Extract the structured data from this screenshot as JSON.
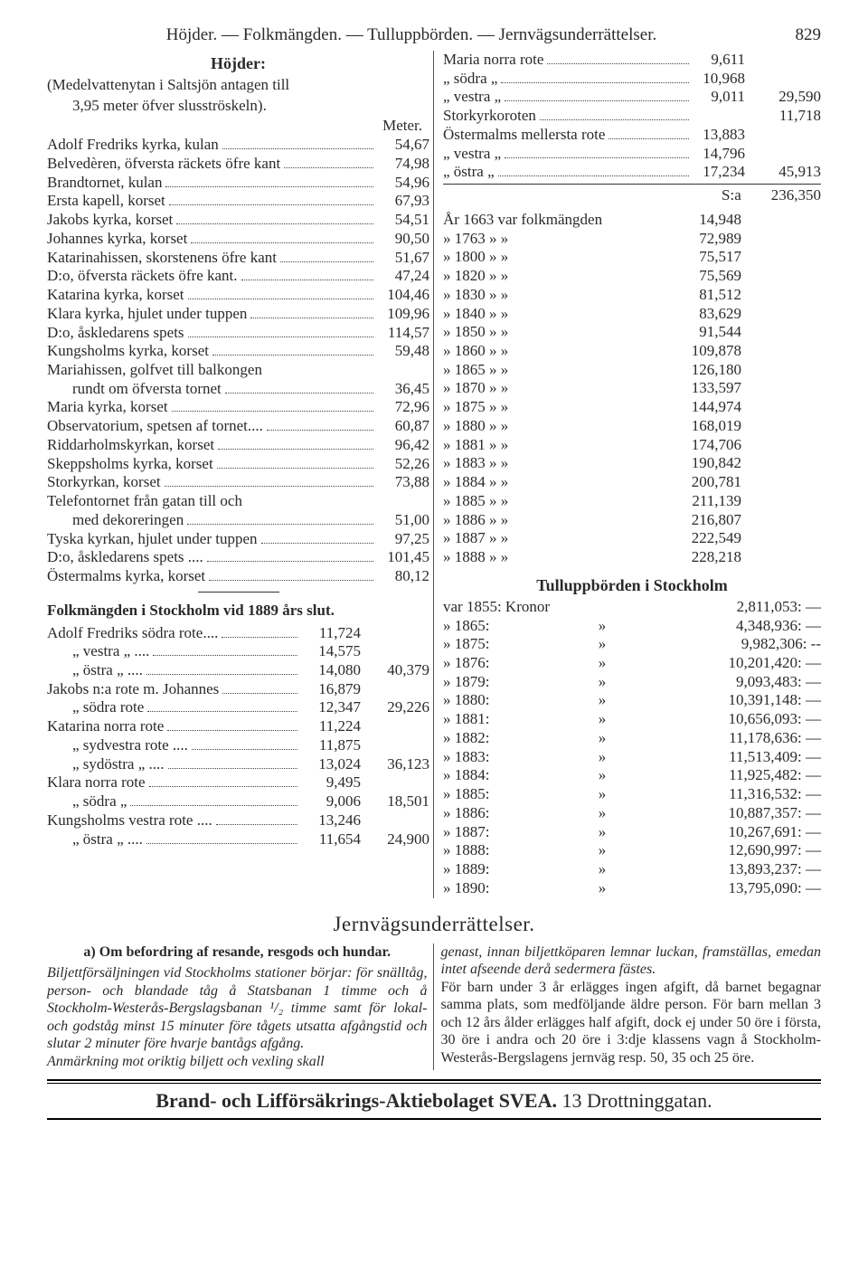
{
  "runhead": {
    "text": "Höjder. — Folkmängden. — Tulluppbörden. — Jernvägsunderrättelser.",
    "page": "829"
  },
  "hojder": {
    "title": "Höjder:",
    "subtitle1": "(Medelvattenytan i Saltsjön antagen till",
    "subtitle2": "3,95 meter öfver slusströskeln).",
    "unit": "Meter.",
    "rows": [
      {
        "l": "Adolf Fredriks kyrka, kulan",
        "v": "54,67"
      },
      {
        "l": "Belvedèren, öfversta räckets öfre kant",
        "v": "74,98"
      },
      {
        "l": "Brandtornet, kulan",
        "v": "54,96"
      },
      {
        "l": "Ersta kapell, korset",
        "v": "67,93"
      },
      {
        "l": "Jakobs kyrka, korset",
        "v": "54,51"
      },
      {
        "l": "Johannes kyrka, korset",
        "v": "90,50"
      },
      {
        "l": "Katarinahissen, skorstenens öfre kant",
        "v": "51,67"
      },
      {
        "l": "D:o,  öfversta räckets öfre kant.",
        "v": "47,24"
      },
      {
        "l": "Katarina kyrka, korset",
        "v": "104,46"
      },
      {
        "l": "Klara kyrka, hjulet under tuppen",
        "v": "109,96"
      },
      {
        "l": "D:o,    åskledarens spets",
        "v": "114,57"
      },
      {
        "l": "Kungsholms kyrka, korset",
        "v": "59,48"
      },
      {
        "l": "Mariahissen, golfvet till balkongen",
        "v": ""
      },
      {
        "l": "rundt om öfversta tornet",
        "v": "36,45",
        "indent": true
      },
      {
        "l": "Maria kyrka, korset",
        "v": "72,96"
      },
      {
        "l": "Observatorium, spetsen af tornet....",
        "v": "60,87"
      },
      {
        "l": "Riddarholmskyrkan, korset",
        "v": "96,42"
      },
      {
        "l": "Skeppsholms kyrka, korset",
        "v": "52,26"
      },
      {
        "l": "Storkyrkan, korset",
        "v": "73,88"
      },
      {
        "l": "Telefontornet från gatan till och",
        "v": ""
      },
      {
        "l": "med dekoreringen",
        "v": "51,00",
        "indent": true
      },
      {
        "l": "Tyska kyrkan, hjulet under tuppen",
        "v": "97,25"
      },
      {
        "l": "D:o,       åskledarens spets ....",
        "v": "101,45"
      },
      {
        "l": "Östermalms kyrka, korset",
        "v": "80,12"
      }
    ]
  },
  "right_top": {
    "rows": [
      {
        "l": "Maria norra rote",
        "v": "9,611",
        "sum": ""
      },
      {
        "l": "„     södra   „",
        "v": "10,968",
        "sum": ""
      },
      {
        "l": "„     vestra  „",
        "v": "9,011",
        "sum": "29,590"
      },
      {
        "l": "Storkyrkoroten",
        "v": "",
        "sum": "11,718"
      },
      {
        "l": "Östermalms mellersta rote",
        "v": "13,883",
        "sum": ""
      },
      {
        "l": "„         vestra      „",
        "v": "14,796",
        "sum": ""
      },
      {
        "l": "„         östra       „",
        "v": "17,234",
        "sum": "45,913"
      }
    ],
    "total_label": "S:a",
    "total": "236,350"
  },
  "years": {
    "head": "År 1663 var folkmängden",
    "rows": [
      {
        "y": "1663",
        "v": "14,948",
        "first": true
      },
      {
        "y": "1763",
        "v": "72,989"
      },
      {
        "y": "1800",
        "v": "75,517"
      },
      {
        "y": "1820",
        "v": "75,569"
      },
      {
        "y": "1830",
        "v": "81,512"
      },
      {
        "y": "1840",
        "v": "83,629"
      },
      {
        "y": "1850",
        "v": "91,544"
      },
      {
        "y": "1860",
        "v": "109,878"
      },
      {
        "y": "1865",
        "v": "126,180"
      },
      {
        "y": "1870",
        "v": "133,597"
      },
      {
        "y": "1875",
        "v": "144,974"
      },
      {
        "y": "1880",
        "v": "168,019"
      },
      {
        "y": "1881",
        "v": "174,706"
      },
      {
        "y": "1883",
        "v": "190,842"
      },
      {
        "y": "1884",
        "v": "200,781"
      },
      {
        "y": "1885",
        "v": "211,139"
      },
      {
        "y": "1886",
        "v": "216,807"
      },
      {
        "y": "1887",
        "v": "222,549"
      },
      {
        "y": "1888",
        "v": "228,218"
      }
    ]
  },
  "tull": {
    "title": "Tulluppbörden i Stockholm",
    "lead": "var 1855: Kronor",
    "lead_v": "2,811,053: —",
    "rows": [
      {
        "y": "1865:",
        "v": "4,348,936: —"
      },
      {
        "y": "1875:",
        "v": "9,982,306: --"
      },
      {
        "y": "1876:",
        "v": "10,201,420: —"
      },
      {
        "y": "1879:",
        "v": "9,093,483: —"
      },
      {
        "y": "1880:",
        "v": "10,391,148: —"
      },
      {
        "y": "1881:",
        "v": "10,656,093: —"
      },
      {
        "y": "1882:",
        "v": "11,178,636: —"
      },
      {
        "y": "1883:",
        "v": "11,513,409: —"
      },
      {
        "y": "1884:",
        "v": "11,925,482: —"
      },
      {
        "y": "1885:",
        "v": "11,316,532: —"
      },
      {
        "y": "1886:",
        "v": "10,887,357: —"
      },
      {
        "y": "1887:",
        "v": "10,267,691: —"
      },
      {
        "y": "1888:",
        "v": "12,690,997: —"
      },
      {
        "y": "1889:",
        "v": "13,893,237: —"
      },
      {
        "y": "1890:",
        "v": "13,795,090: —"
      }
    ]
  },
  "folk": {
    "title": "Folkmängden i Stockholm vid 1889 års slut.",
    "groups": [
      {
        "rows": [
          {
            "l": "Adolf Fredriks södra rote....",
            "v": "11,724"
          },
          {
            "l": "„        vestra „  ....",
            "v": "14,575",
            "indent": true
          },
          {
            "l": "„        östra  „  ....",
            "v": "14,080",
            "indent": true
          }
        ],
        "sum": "40,379"
      },
      {
        "rows": [
          {
            "l": "Jakobs n:a rote m. Johannes",
            "v": "16,879"
          },
          {
            "l": "„    södra rote",
            "v": "12,347",
            "indent": true
          }
        ],
        "sum": "29,226"
      },
      {
        "rows": [
          {
            "l": "Katarina norra rote",
            "v": "11,224"
          },
          {
            "l": "„    sydvestra rote ....",
            "v": "11,875",
            "indent": true
          },
          {
            "l": "„    sydöstra   „   ....",
            "v": "13,024",
            "indent": true
          }
        ],
        "sum": "36,123"
      },
      {
        "rows": [
          {
            "l": "Klara norra rote",
            "v": "9,495"
          },
          {
            "l": "„   södra  „",
            "v": "9,006",
            "indent": true
          }
        ],
        "sum": "18,501"
      },
      {
        "rows": [
          {
            "l": "Kungsholms vestra rote ....",
            "v": "13,246"
          },
          {
            "l": "„       östra   „   ....",
            "v": "11,654",
            "indent": true
          }
        ],
        "sum": "24,900"
      }
    ]
  },
  "jern": {
    "title": "Jernvägsunderrättelser.",
    "subhead": "a) Om befordring af resande, resgods och hundar.",
    "left_para": "Biljettförsäljningen vid Stockholms stationer börjar: för snälltåg, person- och blandade tåg å Statsbanan 1 timme och å Stockholm-Westerås-Bergslagsbanan ¹/₂ timme samt för lokal- och godståg minst 15 minuter före tågets utsatta afgångstid och slutar 2 minuter före hvarje bantågs afgång.",
    "left_note": "Anmärkning mot oriktig biljett och vexling skall",
    "right_para1": "genast, innan biljettköparen lemnar luckan, framställas, emedan intet afseende derå sedermera fästes.",
    "right_para2": "För barn under 3 år erlägges ingen afgift, då barnet begagnar samma plats, som medföljande äldre person. För barn mellan 3 och 12 års ålder erlägges half afgift, dock ej under 50 öre i första, 30 öre i andra och 20 öre i 3:dje klassens vagn å Stockholm-Westerås-Bergslagens jernväg resp. 50, 35 och 25 öre."
  },
  "footer": {
    "bold": "Brand- och Lifförsäkrings-Aktiebolaget SVEA.",
    "rest": " 13 Drottninggatan."
  }
}
